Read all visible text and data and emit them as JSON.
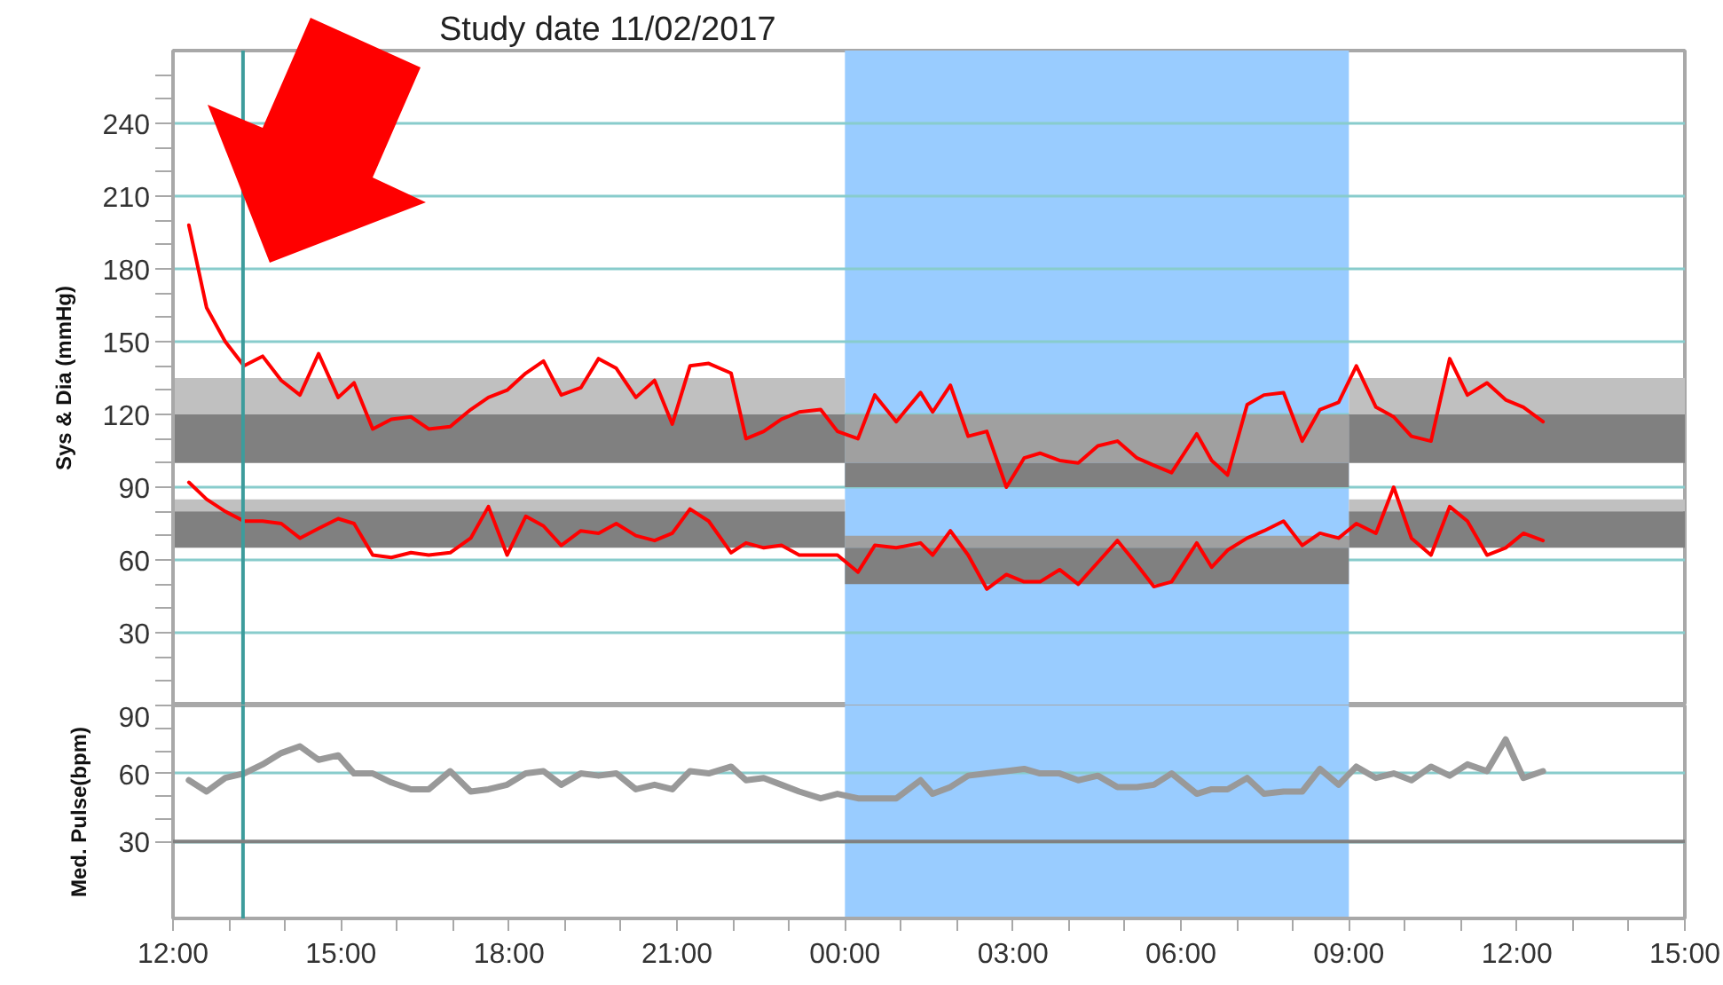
{
  "chart_data": [
    {
      "type": "line",
      "title": "Study date 11/02/2017",
      "ylabel": "Sys & Dia (mmHg)",
      "x": [
        "2017-02-11T12:17",
        "2017-02-11T12:36",
        "2017-02-11T12:56",
        "2017-02-11T13:16",
        "2017-02-11T13:36",
        "2017-02-11T13:56",
        "2017-02-11T14:16",
        "2017-02-11T14:36",
        "2017-02-11T14:57",
        "2017-02-11T15:14",
        "2017-02-11T15:34",
        "2017-02-11T15:54",
        "2017-02-11T16:15",
        "2017-02-11T16:34",
        "2017-02-11T16:57",
        "2017-02-11T17:19",
        "2017-02-11T17:38",
        "2017-02-11T17:58",
        "2017-02-11T18:18",
        "2017-02-11T18:37",
        "2017-02-11T18:56",
        "2017-02-11T19:17",
        "2017-02-11T19:36",
        "2017-02-11T19:55",
        "2017-02-11T20:16",
        "2017-02-11T20:36",
        "2017-02-11T20:55",
        "2017-02-11T21:14",
        "2017-02-11T21:34",
        "2017-02-11T21:58",
        "2017-02-11T22:14",
        "2017-02-11T22:33",
        "2017-02-11T22:52",
        "2017-02-11T23:11",
        "2017-02-11T23:34",
        "2017-02-11T23:52",
        "2017-02-12T00:14",
        "2017-02-12T00:32",
        "2017-02-12T00:55",
        "2017-02-12T01:21",
        "2017-02-12T01:34",
        "2017-02-12T01:53",
        "2017-02-12T02:12",
        "2017-02-12T02:32",
        "2017-02-12T02:53",
        "2017-02-12T03:12",
        "2017-02-12T03:29",
        "2017-02-12T03:50",
        "2017-02-12T04:10",
        "2017-02-12T04:31",
        "2017-02-12T04:52",
        "2017-02-12T05:13",
        "2017-02-12T05:31",
        "2017-02-12T05:50",
        "2017-02-12T06:17",
        "2017-02-12T06:33",
        "2017-02-12T06:50",
        "2017-02-12T07:11",
        "2017-02-12T07:29",
        "2017-02-12T07:50",
        "2017-02-12T08:10",
        "2017-02-12T08:29",
        "2017-02-12T08:49",
        "2017-02-12T09:08",
        "2017-02-12T09:29",
        "2017-02-12T09:48",
        "2017-02-12T10:07",
        "2017-02-12T10:28",
        "2017-02-12T10:48",
        "2017-02-12T11:07",
        "2017-02-12T11:28",
        "2017-02-12T11:48",
        "2017-02-12T12:07",
        "2017-02-12T12:28"
      ],
      "series": [
        {
          "type": "histogram",
          "bins": [
            "2017-02-11T12:00",
            "2017-02-12T00:00",
            "2017-02-12T09:00",
            "2017-02-12T15:00"
          ],
          "base": [
            120,
            100,
            120
          ],
          "values": [
            15,
            20,
            15
          ],
          "colors": [
            "#c0c0c0",
            "#a0a0a0",
            "#c0c0c0"
          ]
        },
        {
          "type": "histogram",
          "bins": [
            "2017-02-11T12:00",
            "2017-02-12T00:00",
            "2017-02-12T09:00",
            "2017-02-12T15:00"
          ],
          "base": [
            100,
            90,
            100
          ],
          "values": [
            20,
            10,
            20
          ],
          "colors": [
            "#808080",
            "#808080",
            "#808080"
          ]
        },
        {
          "type": "histogram",
          "bins": [
            "2017-02-11T12:00",
            "2017-02-12T00:00",
            "2017-02-12T09:00",
            "2017-02-12T15:00"
          ],
          "base": [
            80,
            65,
            80
          ],
          "values": [
            5,
            5,
            5
          ],
          "colors": [
            "#c0c0c0",
            "#a0a0a0",
            "#c0c0c0"
          ]
        },
        {
          "type": "histogram",
          "bins": [
            "2017-02-11T12:00",
            "2017-02-12T00:00",
            "2017-02-12T09:00",
            "2017-02-12T15:00"
          ],
          "base": [
            65,
            50,
            65
          ],
          "values": [
            15,
            15,
            15
          ],
          "colors": [
            "#808080",
            "#808080",
            "#808080"
          ]
        },
        {
          "color": "#ff0000",
          "values": [
            198,
            164,
            150,
            140,
            144,
            134,
            128,
            145,
            127,
            133,
            114,
            118,
            119,
            114,
            115,
            122,
            127,
            130,
            137,
            142,
            128,
            131,
            143,
            139,
            127,
            134,
            116,
            140,
            141,
            137,
            110,
            113,
            118,
            121,
            122,
            113,
            110,
            128,
            117,
            129,
            121,
            132,
            111,
            113,
            90,
            102,
            104,
            101,
            100,
            107,
            109,
            102,
            99,
            96,
            112,
            101,
            95,
            124,
            128,
            129,
            109,
            122,
            125,
            140,
            123,
            119,
            111,
            109,
            143,
            128,
            133,
            126,
            123,
            117
          ]
        },
        {
          "color": "#ff0000",
          "values": [
            92,
            85,
            80,
            76,
            76,
            75,
            69,
            73,
            77,
            75,
            62,
            61,
            63,
            62,
            63,
            69,
            82,
            62,
            78,
            74,
            66,
            72,
            71,
            75,
            70,
            68,
            71,
            81,
            76,
            63,
            67,
            65,
            66,
            62,
            62,
            62,
            55,
            66,
            65,
            67,
            62,
            72,
            62,
            48,
            54,
            51,
            51,
            56,
            50,
            59,
            68,
            58,
            49,
            51,
            67,
            57,
            64,
            69,
            72,
            76,
            66,
            71,
            69,
            75,
            71,
            90,
            69,
            62,
            82,
            76,
            62,
            65,
            71,
            68
          ]
        }
      ],
      "xlim": [
        "2017-02-11T12:00",
        "2017-02-12T15:00"
      ],
      "ylim": [
        0,
        270
      ],
      "yticks": [
        {
          "value": 10,
          "label": null
        },
        {
          "value": 20,
          "label": null
        },
        30,
        {
          "value": 40,
          "label": null
        },
        {
          "value": 50,
          "label": null
        },
        60,
        {
          "value": 70,
          "label": null
        },
        {
          "value": 80,
          "label": null
        },
        90,
        {
          "value": 100,
          "label": null
        },
        {
          "value": 110,
          "label": null
        },
        120,
        {
          "value": 130,
          "label": null
        },
        {
          "value": 140,
          "label": null
        },
        150,
        {
          "value": 160,
          "label": null
        },
        {
          "value": 170,
          "label": null
        },
        180,
        {
          "value": 190,
          "label": null
        },
        {
          "value": 200,
          "label": null
        },
        210,
        {
          "value": 220,
          "label": null
        },
        {
          "value": 230,
          "label": null
        },
        240,
        {
          "value": 250,
          "label": null
        },
        {
          "value": 260,
          "label": null
        }
      ],
      "grid": "y",
      "tick_labels": "y",
      "bands": [
        {
          "axis": "x",
          "from": "2017-02-12T00:00",
          "to": "2017-02-12T09:00",
          "color": "#99ccff"
        }
      ],
      "ref_lines": [
        {
          "axis": "x",
          "value": "2017-02-11T13:15",
          "color": "#3d9c9c"
        }
      ]
    },
    {
      "type": "line",
      "ylabel": "Med. Pulse(bpm)",
      "x": [
        "2017-02-11T12:17",
        "2017-02-11T12:36",
        "2017-02-11T12:56",
        "2017-02-11T13:16",
        "2017-02-11T13:36",
        "2017-02-11T13:56",
        "2017-02-11T14:16",
        "2017-02-11T14:36",
        "2017-02-11T14:57",
        "2017-02-11T15:14",
        "2017-02-11T15:34",
        "2017-02-11T15:54",
        "2017-02-11T16:15",
        "2017-02-11T16:34",
        "2017-02-11T16:57",
        "2017-02-11T17:19",
        "2017-02-11T17:38",
        "2017-02-11T17:58",
        "2017-02-11T18:18",
        "2017-02-11T18:37",
        "2017-02-11T18:56",
        "2017-02-11T19:17",
        "2017-02-11T19:36",
        "2017-02-11T19:55",
        "2017-02-11T20:16",
        "2017-02-11T20:36",
        "2017-02-11T20:55",
        "2017-02-11T21:14",
        "2017-02-11T21:34",
        "2017-02-11T21:58",
        "2017-02-11T22:14",
        "2017-02-11T22:33",
        "2017-02-11T22:52",
        "2017-02-11T23:11",
        "2017-02-11T23:34",
        "2017-02-11T23:52",
        "2017-02-12T00:14",
        "2017-02-12T00:32",
        "2017-02-12T00:55",
        "2017-02-12T01:21",
        "2017-02-12T01:34",
        "2017-02-12T01:53",
        "2017-02-12T02:12",
        "2017-02-12T02:32",
        "2017-02-12T02:53",
        "2017-02-12T03:12",
        "2017-02-12T03:29",
        "2017-02-12T03:50",
        "2017-02-12T04:10",
        "2017-02-12T04:31",
        "2017-02-12T04:52",
        "2017-02-12T05:13",
        "2017-02-12T05:31",
        "2017-02-12T05:50",
        "2017-02-12T06:17",
        "2017-02-12T06:33",
        "2017-02-12T06:50",
        "2017-02-12T07:11",
        "2017-02-12T07:29",
        "2017-02-12T07:50",
        "2017-02-12T08:10",
        "2017-02-12T08:29",
        "2017-02-12T08:49",
        "2017-02-12T09:08",
        "2017-02-12T09:29",
        "2017-02-12T09:48",
        "2017-02-12T10:07",
        "2017-02-12T10:28",
        "2017-02-12T10:48",
        "2017-02-12T11:07",
        "2017-02-12T11:28",
        "2017-02-12T11:48",
        "2017-02-12T12:07",
        "2017-02-12T12:28"
      ],
      "series": [
        {
          "color": "#999999",
          "values": [
            57,
            52,
            58,
            60,
            64,
            69,
            72,
            66,
            68,
            60,
            60,
            56,
            53,
            53,
            61,
            52,
            53,
            55,
            60,
            61,
            55,
            60,
            59,
            60,
            53,
            55,
            53,
            61,
            60,
            63,
            57,
            58,
            55,
            52,
            49,
            51,
            49,
            49,
            49,
            57,
            51,
            54,
            59,
            60,
            61,
            62,
            60,
            60,
            57,
            59,
            54,
            54,
            55,
            60,
            51,
            53,
            53,
            58,
            51,
            52,
            52,
            62,
            55,
            63,
            58,
            60,
            57,
            63,
            59,
            64,
            61,
            75,
            58,
            61
          ]
        }
      ],
      "xlim": [
        "2017-02-11T12:00",
        "2017-02-12T15:00"
      ],
      "xticks": [
        {
          "value": "2017-02-11T12:00",
          "label": "12:00"
        },
        {
          "value": "2017-02-11T13:00",
          "label": null
        },
        {
          "value": "2017-02-11T14:00",
          "label": null
        },
        {
          "value": "2017-02-11T15:00",
          "label": "15:00"
        },
        {
          "value": "2017-02-11T16:00",
          "label": null
        },
        {
          "value": "2017-02-11T17:00",
          "label": null
        },
        {
          "value": "2017-02-11T18:00",
          "label": "18:00"
        },
        {
          "value": "2017-02-11T19:00",
          "label": null
        },
        {
          "value": "2017-02-11T20:00",
          "label": null
        },
        {
          "value": "2017-02-11T21:00",
          "label": "21:00"
        },
        {
          "value": "2017-02-11T22:00",
          "label": null
        },
        {
          "value": "2017-02-11T23:00",
          "label": null
        },
        {
          "value": "2017-02-12T00:00",
          "label": "00:00"
        },
        {
          "value": "2017-02-12T01:00",
          "label": null
        },
        {
          "value": "2017-02-12T02:00",
          "label": null
        },
        {
          "value": "2017-02-12T03:00",
          "label": "03:00"
        },
        {
          "value": "2017-02-12T04:00",
          "label": null
        },
        {
          "value": "2017-02-12T05:00",
          "label": null
        },
        {
          "value": "2017-02-12T06:00",
          "label": "06:00"
        },
        {
          "value": "2017-02-12T07:00",
          "label": null
        },
        {
          "value": "2017-02-12T08:00",
          "label": null
        },
        {
          "value": "2017-02-12T09:00",
          "label": "09:00"
        },
        {
          "value": "2017-02-12T10:00",
          "label": null
        },
        {
          "value": "2017-02-12T11:00",
          "label": null
        },
        {
          "value": "2017-02-12T12:00",
          "label": "12:00"
        },
        {
          "value": "2017-02-12T13:00",
          "label": null
        },
        {
          "value": "2017-02-12T14:00",
          "label": null
        },
        {
          "value": "2017-02-12T15:00",
          "label": "15:00"
        }
      ],
      "ylim": [
        -4,
        90
      ],
      "yticks": [
        30,
        {
          "value": 40,
          "label": null
        },
        {
          "value": 50,
          "label": null
        },
        60,
        {
          "value": 70,
          "label": null
        },
        {
          "value": 80,
          "label": null
        },
        90
      ],
      "grid": "y",
      "bands": [
        {
          "axis": "x",
          "from": "2017-02-12T00:00",
          "to": "2017-02-12T09:00",
          "color": "#99ccff"
        }
      ],
      "ref_lines": [
        {
          "axis": "x",
          "value": "2017-02-11T13:15",
          "color": "#3d9c9c"
        },
        {
          "axis": "y",
          "value": 30,
          "color": "#808080"
        }
      ]
    }
  ]
}
